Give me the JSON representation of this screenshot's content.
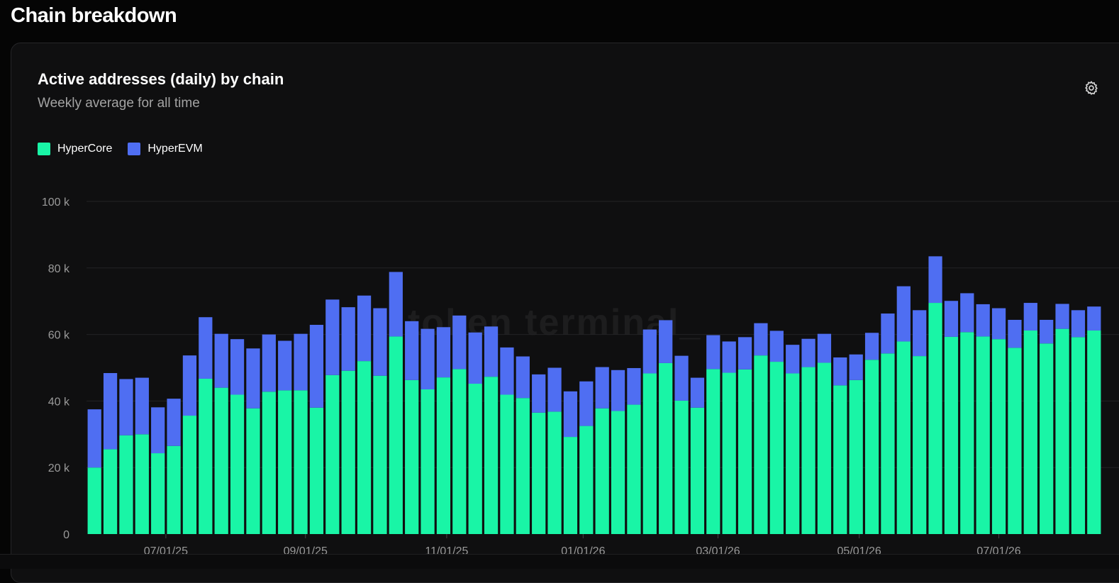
{
  "page": {
    "section_title": "Chain breakdown"
  },
  "card": {
    "title": "Active addresses (daily) by chain",
    "subtitle": "Weekly average for all time",
    "settings_icon": "gear-icon",
    "watermark": "token terminal_"
  },
  "legend": [
    {
      "label": "HyperCore",
      "color": "#19f5a6"
    },
    {
      "label": "HyperEVM",
      "color": "#4f6ef2"
    }
  ],
  "chart_data": {
    "type": "bar",
    "stacked": true,
    "title": "Active addresses (daily) by chain",
    "subtitle": "Weekly average for all time",
    "ylim": [
      0,
      100000
    ],
    "yticks": [
      {
        "value": 0,
        "label": "0"
      },
      {
        "value": 20000,
        "label": "20 k"
      },
      {
        "value": 40000,
        "label": "40 k"
      },
      {
        "value": 60000,
        "label": "60 k"
      },
      {
        "value": 80000,
        "label": "80 k"
      },
      {
        "value": 100000,
        "label": "100 k"
      }
    ],
    "xtick_labels": [
      {
        "index": 4.5,
        "label": "07/01/25"
      },
      {
        "index": 13.3,
        "label": "09/01/25"
      },
      {
        "index": 22.2,
        "label": "11/01/25"
      },
      {
        "index": 30.8,
        "label": "01/01/26"
      },
      {
        "index": 39.3,
        "label": "03/01/26"
      },
      {
        "index": 48.2,
        "label": "05/01/26"
      },
      {
        "index": 57.0,
        "label": "07/01/26"
      }
    ],
    "grid": true,
    "legend_position": "top-left",
    "series": [
      {
        "name": "HyperCore",
        "color": "#19f5a6",
        "values": [
          20000,
          25500,
          29700,
          30000,
          24300,
          26500,
          35600,
          46700,
          44000,
          41900,
          37800,
          42800,
          43200,
          43200,
          38000,
          47800,
          49100,
          52000,
          47600,
          59400,
          46300,
          43500,
          47100,
          49600,
          45200,
          47300,
          41900,
          40900,
          36500,
          36800,
          29200,
          32500,
          37800,
          37000,
          38900,
          48300,
          51400,
          40100,
          38000,
          49600,
          48500,
          49500,
          53700,
          51800,
          48300,
          50200,
          51500,
          44700,
          46300,
          52400,
          54300,
          57900,
          53500,
          69500,
          59300,
          60700,
          59400,
          58600,
          56000,
          61200,
          57300,
          61700,
          59200,
          61200
        ]
      },
      {
        "name": "HyperEVM",
        "color": "#4f6ef2",
        "values": [
          17500,
          22900,
          16900,
          17000,
          13800,
          14200,
          18100,
          18500,
          16200,
          16700,
          18000,
          17200,
          14900,
          17000,
          24900,
          22700,
          19100,
          19700,
          20300,
          19400,
          17700,
          18200,
          15100,
          16100,
          15400,
          15100,
          14200,
          12500,
          11500,
          13200,
          13700,
          13400,
          12400,
          12300,
          11000,
          13200,
          12900,
          13500,
          9000,
          10200,
          9400,
          9700,
          9700,
          9300,
          8600,
          8500,
          8700,
          8400,
          7700,
          8100,
          12000,
          16600,
          13800,
          14000,
          10800,
          11700,
          9700,
          9300,
          8400,
          8300,
          7100,
          7500,
          8100,
          7200
        ]
      }
    ]
  }
}
